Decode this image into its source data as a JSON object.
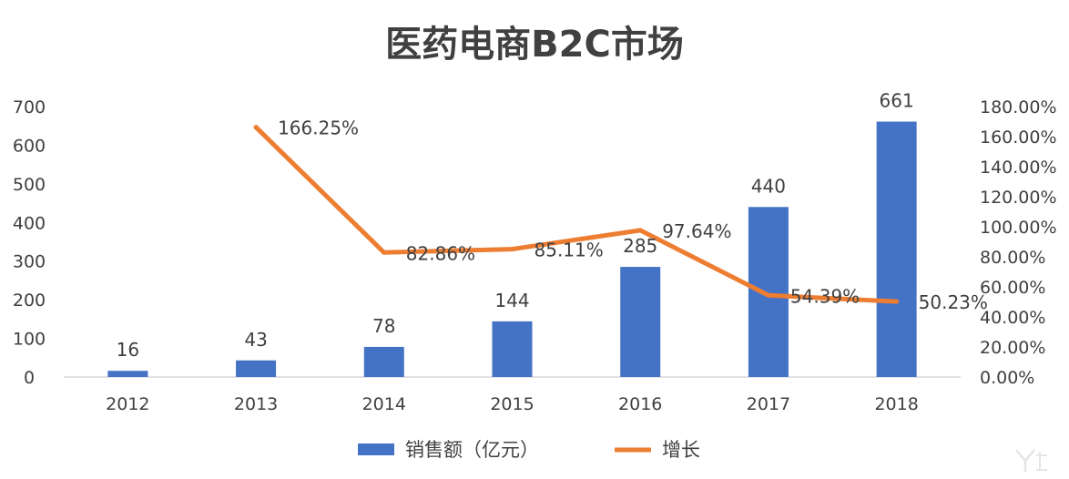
{
  "chart_data": {
    "type": "bar",
    "title": "医药电商B2C市场",
    "categories": [
      "2012",
      "2013",
      "2014",
      "2015",
      "2016",
      "2017",
      "2018"
    ],
    "series": [
      {
        "name": "销售额（亿元）",
        "type": "bar",
        "axis": "left",
        "color": "#4472C4",
        "values": [
          16,
          43,
          78,
          144,
          285,
          440,
          661
        ],
        "labels": [
          "16",
          "43",
          "78",
          "144",
          "285",
          "440",
          "661"
        ]
      },
      {
        "name": "增长",
        "type": "line",
        "axis": "right",
        "color": "#ED7D31",
        "values": [
          null,
          166.25,
          82.86,
          85.11,
          97.64,
          54.39,
          50.23
        ],
        "labels": [
          "",
          "166.25%",
          "82.86%",
          "85.11%",
          "97.64%",
          "54.39%",
          "50.23%"
        ]
      }
    ],
    "left_axis": {
      "ylim": [
        0,
        700
      ],
      "ticks": [
        "0",
        "100",
        "200",
        "300",
        "400",
        "500",
        "600",
        "700"
      ]
    },
    "right_axis": {
      "ylim": [
        0,
        180
      ],
      "ticks": [
        "0.00%",
        "20.00%",
        "40.00%",
        "60.00%",
        "80.00%",
        "100.00%",
        "120.00%",
        "140.00%",
        "160.00%",
        "180.00%"
      ]
    },
    "grid": false,
    "legend_position": "bottom"
  }
}
